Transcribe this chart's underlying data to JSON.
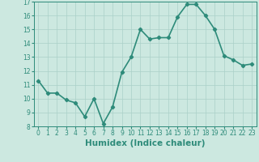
{
  "xlabel": "Humidex (Indice chaleur)",
  "ylabel": "",
  "x": [
    0,
    1,
    2,
    3,
    4,
    5,
    6,
    7,
    8,
    9,
    10,
    11,
    12,
    13,
    14,
    15,
    16,
    17,
    18,
    19,
    20,
    21,
    22,
    23
  ],
  "y": [
    11.3,
    10.4,
    10.4,
    9.9,
    9.7,
    8.7,
    10.0,
    8.2,
    9.4,
    11.9,
    13.0,
    15.0,
    14.3,
    14.4,
    14.4,
    15.9,
    16.8,
    16.8,
    16.0,
    15.0,
    13.1,
    12.8,
    12.4,
    12.5
  ],
  "line_color": "#2e8b7a",
  "marker": "D",
  "marker_size": 2.2,
  "bg_color": "#cce8e0",
  "grid_color": "#aad0c8",
  "ylim": [
    8,
    17
  ],
  "xlim": [
    -0.5,
    23.5
  ],
  "yticks": [
    8,
    9,
    10,
    11,
    12,
    13,
    14,
    15,
    16,
    17
  ],
  "xticks": [
    0,
    1,
    2,
    3,
    4,
    5,
    6,
    7,
    8,
    9,
    10,
    11,
    12,
    13,
    14,
    15,
    16,
    17,
    18,
    19,
    20,
    21,
    22,
    23
  ],
  "tick_fontsize": 5.5,
  "xlabel_fontsize": 7.5,
  "line_width": 1.2
}
